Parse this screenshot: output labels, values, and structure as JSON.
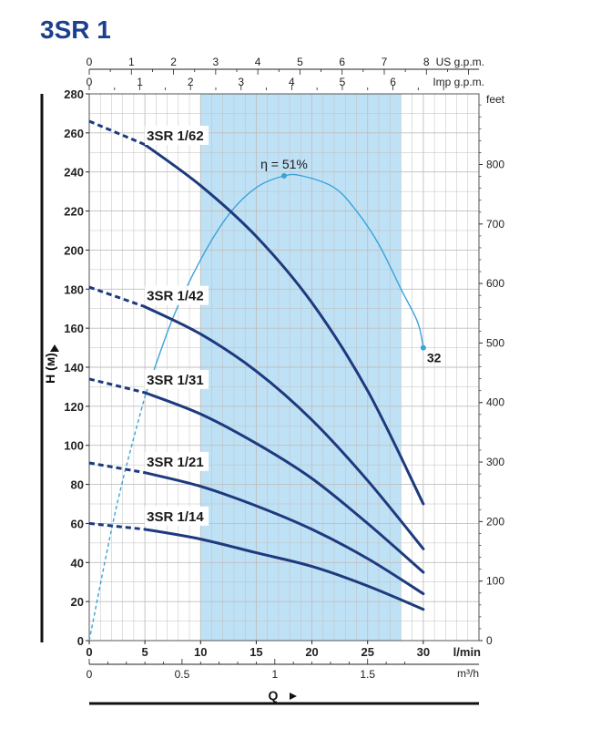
{
  "title": "3SR 1",
  "colors": {
    "curve": "#1d3a7e",
    "efficiency": "#3aa3d9",
    "band": "#bfe1f5",
    "grid": "#bfbfbf",
    "title": "#1d3f8f"
  },
  "chart_data": {
    "type": "line",
    "x_label": "Q",
    "y_label": "H (м)",
    "x_unit": "l/min",
    "y_unit": "m",
    "xlim": [
      0,
      35
    ],
    "ylim": [
      0,
      280
    ],
    "x_ticks": [
      0,
      5,
      10,
      15,
      20,
      25,
      30
    ],
    "y_ticks": [
      0,
      20,
      40,
      60,
      80,
      100,
      120,
      140,
      160,
      180,
      200,
      220,
      240,
      260,
      280
    ],
    "recommended_range": [
      10,
      28
    ],
    "grid": true,
    "secondary_axes": {
      "top_us": {
        "unit": "US g.p.m.",
        "ticks": [
          0,
          1,
          2,
          3,
          4,
          5,
          6,
          7,
          8
        ],
        "factor_lmin": 3.785
      },
      "top_imp": {
        "unit": "Imp g.p.m.",
        "ticks": [
          0,
          1,
          2,
          3,
          4,
          5,
          6
        ],
        "factor_lmin": 4.546
      },
      "bottom_m3h": {
        "unit": "m³/h",
        "ticks": [
          0,
          0.5,
          1,
          1.5
        ],
        "factor_lmin": 16.667
      },
      "right_feet": {
        "unit": "feet",
        "ticks": [
          0,
          100,
          200,
          300,
          400,
          500,
          600,
          700,
          800
        ],
        "factor_m": 0.3048
      }
    },
    "series": [
      {
        "name": "3SR 1/62",
        "label_at": [
          5,
          252
        ],
        "values": [
          [
            0,
            266
          ],
          [
            5,
            254
          ],
          [
            10,
            233
          ],
          [
            15,
            207
          ],
          [
            20,
            173
          ],
          [
            25,
            128
          ],
          [
            30,
            70
          ]
        ]
      },
      {
        "name": "3SR 1/42",
        "label_at": [
          5,
          170
        ],
        "values": [
          [
            0,
            181
          ],
          [
            5,
            171
          ],
          [
            10,
            157
          ],
          [
            15,
            138
          ],
          [
            20,
            113
          ],
          [
            25,
            82
          ],
          [
            30,
            47
          ]
        ]
      },
      {
        "name": "3SR 1/31",
        "label_at": [
          5,
          127
        ],
        "values": [
          [
            0,
            134
          ],
          [
            5,
            127
          ],
          [
            10,
            116
          ],
          [
            15,
            101
          ],
          [
            20,
            83
          ],
          [
            25,
            60
          ],
          [
            30,
            35
          ]
        ]
      },
      {
        "name": "3SR 1/21",
        "label_at": [
          5,
          85
        ],
        "values": [
          [
            0,
            91
          ],
          [
            5,
            86
          ],
          [
            10,
            79
          ],
          [
            15,
            69
          ],
          [
            20,
            57
          ],
          [
            25,
            42
          ],
          [
            30,
            24
          ]
        ]
      },
      {
        "name": "3SR 1/14",
        "label_at": [
          5,
          57
        ],
        "values": [
          [
            0,
            60
          ],
          [
            5,
            57
          ],
          [
            10,
            52
          ],
          [
            15,
            45
          ],
          [
            20,
            38
          ],
          [
            25,
            28
          ],
          [
            30,
            16
          ]
        ]
      }
    ],
    "efficiency": {
      "name": "η",
      "peak_label": "η = 51%",
      "end_label": "32",
      "values": [
        [
          0,
          0
        ],
        [
          2.5,
          70
        ],
        [
          5,
          125
        ],
        [
          7.5,
          165
        ],
        [
          10,
          195
        ],
        [
          12.5,
          218
        ],
        [
          15,
          232
        ],
        [
          17.5,
          238
        ],
        [
          19.1,
          238
        ],
        [
          22,
          232
        ],
        [
          24,
          220
        ],
        [
          26,
          203
        ],
        [
          28,
          180
        ],
        [
          29.5,
          163
        ],
        [
          30,
          150
        ]
      ]
    }
  }
}
